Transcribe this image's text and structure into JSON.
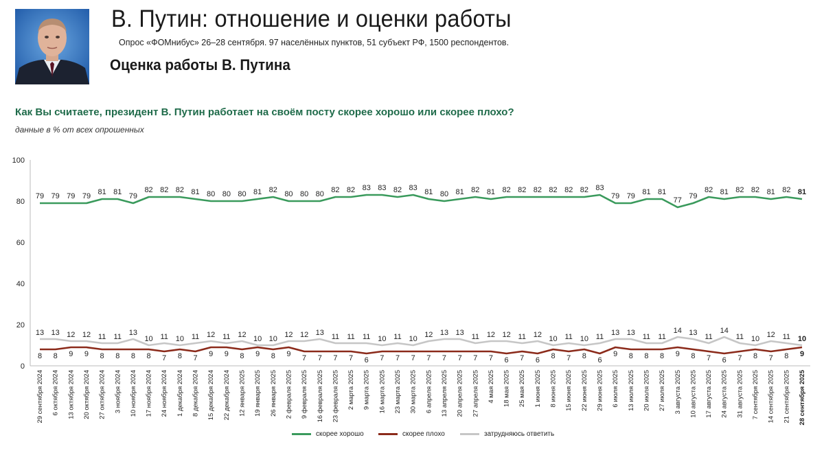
{
  "header": {
    "title": "В. Путин: отношение и оценки работы",
    "survey_info": "Опрос «ФОМнибус» 26–28 сентября. 97 населённых пунктов, 51 субъект РФ, 1500 респондентов.",
    "section_title": "Оценка работы В. Путина"
  },
  "question": "Как Вы считаете, президент В. Путин работает на своём посту скорее хорошо или скорее плохо?",
  "data_note": "данные в % от всех опрошенных",
  "chart_data": {
    "type": "line",
    "ylim": [
      0,
      100
    ],
    "yticks": [
      0,
      20,
      40,
      60,
      80,
      100
    ],
    "grid": false,
    "legend_position": "bottom-center",
    "categories": [
      "29 сентября 2024",
      "6 октября 2024",
      "13 октября 2024",
      "20 октября 2024",
      "27 октября 2024",
      "3 ноября 2024",
      "10 ноября 2024",
      "17 ноября 2024",
      "24 ноября 2024",
      "1 декабря 2024",
      "8 декабря 2024",
      "15 декабря 2024",
      "22 декабря 2024",
      "12 января 2025",
      "19 января 2025",
      "26 января 2025",
      "2 февраля 2025",
      "9 февраля 2025",
      "16 февраля 2025",
      "23 февраля 2025",
      "2 марта 2025",
      "9 марта 2025",
      "16 марта 2025",
      "23 марта 2025",
      "30 марта 2025",
      "6 апреля 2025",
      "13 апреля 2025",
      "20 апреля 2025",
      "27 апреля 2025",
      "4 мая 2025",
      "18 мая 2025",
      "25 мая 2025",
      "1 июня 2025",
      "8 июня 2025",
      "15 июня 2025",
      "22 июня 2025",
      "29 июня 2025",
      "6 июля 2025",
      "13 июля 2025",
      "20 июля 2025",
      "27 июля 2025",
      "3 августа 2025",
      "10 августа 2025",
      "17 августа 2025",
      "24 августа 2025",
      "31 августа 2025",
      "7 сентября 2025",
      "14 сентября 2025",
      "21 сентября 2025",
      "28 сентября 2025"
    ],
    "series": [
      {
        "name": "скорее хорошо",
        "color": "#3a9a5c",
        "values": [
          79,
          79,
          79,
          79,
          81,
          81,
          79,
          82,
          82,
          82,
          81,
          80,
          80,
          80,
          81,
          82,
          80,
          80,
          80,
          82,
          82,
          83,
          83,
          82,
          83,
          81,
          80,
          81,
          82,
          81,
          82,
          82,
          82,
          82,
          82,
          82,
          83,
          79,
          79,
          81,
          81,
          77,
          79,
          82,
          81,
          82,
          82,
          81,
          82,
          81
        ]
      },
      {
        "name": "скорее плохо",
        "color": "#8b2a1a",
        "values": [
          8,
          8,
          9,
          9,
          8,
          8,
          8,
          8,
          7,
          8,
          7,
          9,
          9,
          8,
          9,
          8,
          9,
          7,
          7,
          7,
          7,
          6,
          7,
          7,
          7,
          7,
          7,
          7,
          7,
          7,
          6,
          7,
          6,
          8,
          7,
          8,
          6,
          9,
          8,
          8,
          8,
          9,
          8,
          7,
          6,
          7,
          8,
          7,
          8,
          9
        ]
      },
      {
        "name": "затрудняюсь ответить",
        "color": "#c6c6c6",
        "values": [
          13,
          13,
          12,
          12,
          11,
          11,
          13,
          10,
          11,
          10,
          11,
          12,
          11,
          12,
          10,
          10,
          12,
          12,
          13,
          11,
          11,
          11,
          10,
          11,
          10,
          12,
          13,
          13,
          11,
          12,
          12,
          11,
          12,
          10,
          11,
          10,
          11,
          13,
          13,
          11,
          11,
          14,
          13,
          11,
          14,
          11,
          10,
          12,
          11,
          10
        ]
      }
    ]
  }
}
